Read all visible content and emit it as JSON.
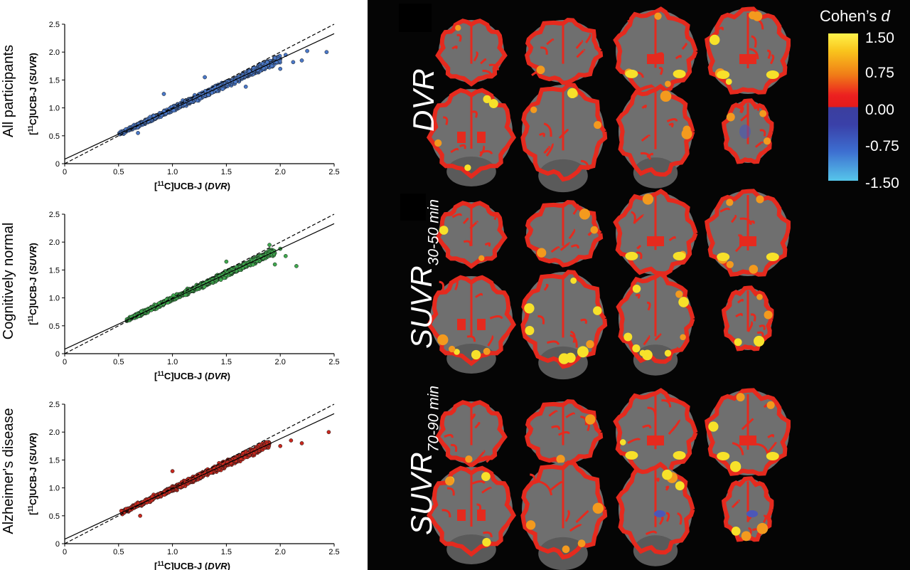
{
  "chart_data": [
    {
      "type": "scatter",
      "title": "All participants",
      "xlabel": "[11C]UCB-J (DVR)",
      "ylabel": "[11C]UCB-J (SUVR)",
      "xlim": [
        0,
        2.5
      ],
      "ylim": [
        0,
        2.5
      ],
      "xticks": [
        "0",
        "0.5",
        "1.0",
        "1.5",
        "2.0",
        "2.5"
      ],
      "yticks": [
        "0",
        "0.5",
        "1.0",
        "1.5",
        "2.0",
        "2.5"
      ],
      "color": "#4a78c8",
      "identity_line": {
        "slope": 1.0,
        "intercept": 0.0,
        "style": "dashed"
      },
      "fit_line": {
        "slope": 0.9,
        "intercept": 0.08,
        "style": "solid"
      },
      "cloud": {
        "x_min": 0.5,
        "x_max": 2.0,
        "spread": 0.06
      },
      "outliers": [
        [
          2.05,
          1.95
        ],
        [
          2.12,
          1.82
        ],
        [
          2.2,
          1.85
        ],
        [
          2.25,
          2.02
        ],
        [
          2.43,
          2.0
        ],
        [
          0.92,
          1.25
        ],
        [
          1.3,
          1.55
        ],
        [
          0.68,
          0.55
        ],
        [
          2.0,
          1.7
        ],
        [
          1.68,
          1.38
        ]
      ]
    },
    {
      "type": "scatter",
      "title": "Cognitively normal",
      "xlabel": "[11C]UCB-J (DVR)",
      "ylabel": "[11C]UCB-J (SUVR)",
      "xlim": [
        0,
        2.5
      ],
      "ylim": [
        0,
        2.5
      ],
      "xticks": [
        "0",
        "0.5",
        "1.0",
        "1.5",
        "2.0",
        "2.5"
      ],
      "yticks": [
        "0",
        "0.5",
        "1.0",
        "1.5",
        "2.0",
        "2.5"
      ],
      "color": "#3fa84e",
      "identity_line": {
        "slope": 1.0,
        "intercept": 0.0,
        "style": "dashed"
      },
      "fit_line": {
        "slope": 0.9,
        "intercept": 0.08,
        "style": "solid"
      },
      "cloud": {
        "x_min": 0.57,
        "x_max": 1.95,
        "spread": 0.055
      },
      "outliers": [
        [
          1.9,
          1.95
        ],
        [
          2.05,
          1.75
        ],
        [
          2.15,
          1.57
        ],
        [
          1.95,
          1.6
        ],
        [
          1.5,
          1.65
        ],
        [
          2.0,
          1.88
        ]
      ]
    },
    {
      "type": "scatter",
      "title": "Alzheimer's disease",
      "xlabel": "[11C]UCB-J (DVR)",
      "ylabel": "[11C]UCB-J (SUVR)",
      "xlim": [
        0,
        2.5
      ],
      "ylim": [
        0,
        2.5
      ],
      "xticks": [
        "0",
        "0.5",
        "1.0",
        "1.5",
        "2.0",
        "2.5"
      ],
      "yticks": [
        "0",
        "0.5",
        "1.0",
        "1.5",
        "2.0",
        "2.5"
      ],
      "color": "#c8281e",
      "identity_line": {
        "slope": 1.0,
        "intercept": 0.0,
        "style": "dashed"
      },
      "fit_line": {
        "slope": 0.9,
        "intercept": 0.08,
        "style": "solid"
      },
      "cloud": {
        "x_min": 0.52,
        "x_max": 1.9,
        "spread": 0.06
      },
      "outliers": [
        [
          2.0,
          1.75
        ],
        [
          2.1,
          1.85
        ],
        [
          2.2,
          1.8
        ],
        [
          2.45,
          2.0
        ],
        [
          1.0,
          1.3
        ],
        [
          0.7,
          0.5
        ],
        [
          1.8,
          1.7
        ]
      ]
    }
  ],
  "brain_panel": {
    "rows": [
      {
        "label": "DVR",
        "sub": ""
      },
      {
        "label": "SUVR",
        "sub": "30-50 min"
      },
      {
        "label": "SUVR",
        "sub": "70-90 min"
      }
    ],
    "colorbar": {
      "title_text": "Cohen’s ",
      "title_italic": "d",
      "ticks": [
        "1.50",
        "0.75",
        "0.00",
        "-0.75",
        "-1.50"
      ]
    },
    "brain_colors": {
      "outline": "#e52a1e",
      "hot": "#f39a1e",
      "warm": "#f7e12a",
      "cool": "#4b57b8",
      "tissue": "#6f6f6f",
      "background": "#050505"
    }
  }
}
